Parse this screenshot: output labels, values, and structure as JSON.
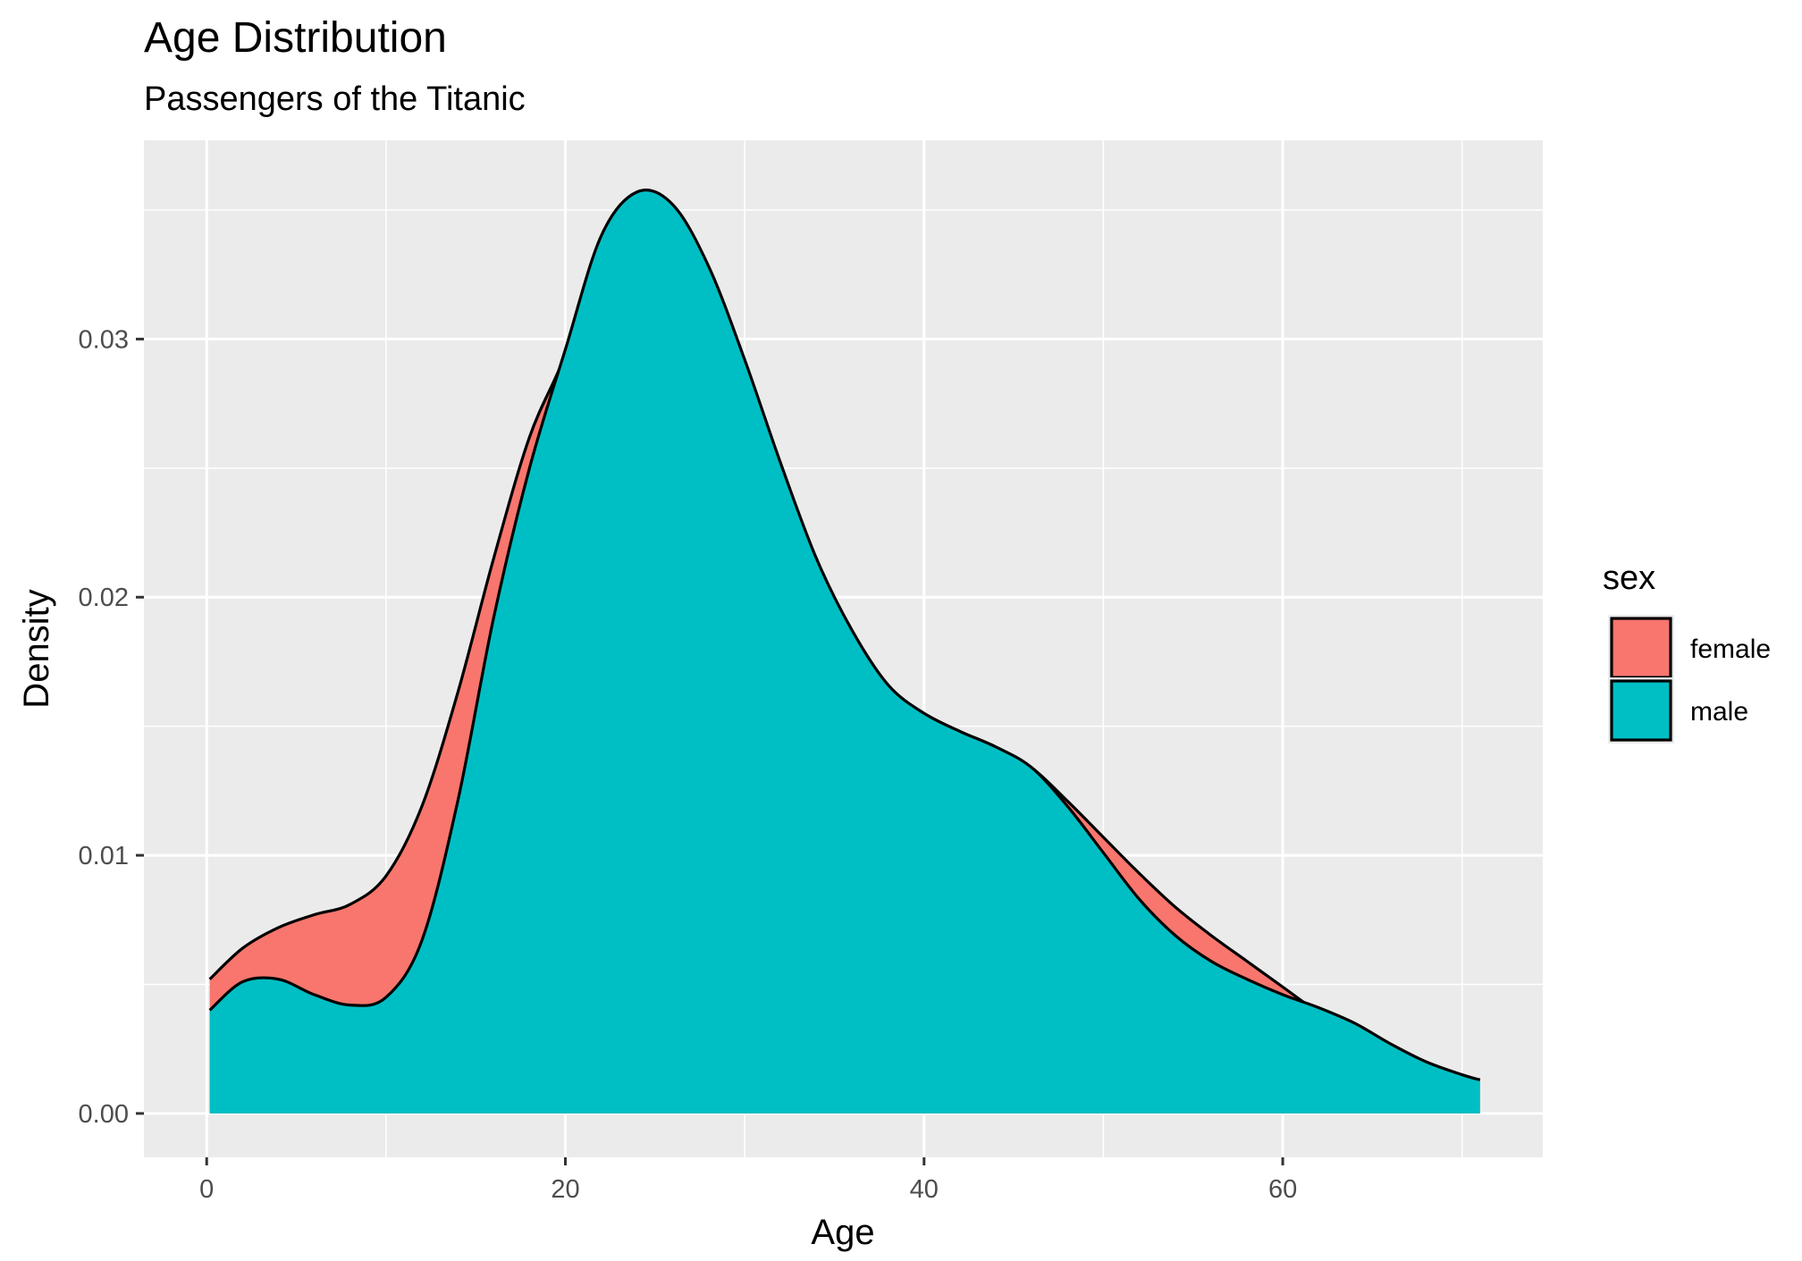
{
  "chart_data": {
    "type": "area",
    "title": "Age Distribution",
    "subtitle": "Passengers of the Titanic",
    "xlabel": "Age",
    "ylabel": "Density",
    "xlim": [
      -3.5,
      74.5
    ],
    "ylim": [
      -0.0017,
      0.0377
    ],
    "x_ticks": [
      0,
      20,
      40,
      60
    ],
    "y_ticks": [
      0.0,
      0.01,
      0.02,
      0.03
    ],
    "y_tick_labels": [
      "0.00",
      "0.01",
      "0.02",
      "0.03"
    ],
    "grid": true,
    "legend": {
      "title": "sex",
      "position": "right"
    },
    "series": [
      {
        "name": "female",
        "color": "#F8766D",
        "x": [
          0.17,
          2,
          4,
          6,
          8,
          10,
          12,
          14,
          16,
          18,
          20,
          22,
          24,
          26,
          28,
          30,
          32,
          34,
          36,
          38,
          40,
          42,
          44,
          46,
          48,
          50,
          52,
          54,
          56,
          58,
          60,
          62,
          64,
          66,
          68,
          70,
          71
        ],
        "values": [
          0.0052,
          0.0064,
          0.0072,
          0.0077,
          0.0081,
          0.0092,
          0.0119,
          0.0163,
          0.0215,
          0.0262,
          0.0294,
          0.0335,
          0.0355,
          0.035,
          0.0326,
          0.029,
          0.0251,
          0.0214,
          0.0186,
          0.0165,
          0.0155,
          0.0148,
          0.0142,
          0.0134,
          0.0121,
          0.0107,
          0.0093,
          0.008,
          0.0069,
          0.0059,
          0.0049,
          0.0039,
          0.003,
          0.0023,
          0.0018,
          0.0014,
          0.0013
        ]
      },
      {
        "name": "male",
        "color": "#00BFC4",
        "x": [
          0.17,
          2,
          4,
          6,
          8,
          10,
          12,
          14,
          16,
          18,
          20,
          22,
          24,
          26,
          28,
          30,
          32,
          34,
          36,
          38,
          40,
          42,
          44,
          46,
          48,
          50,
          52,
          54,
          56,
          58,
          60,
          62,
          64,
          66,
          68,
          70,
          71
        ],
        "values": [
          0.004,
          0.0051,
          0.0052,
          0.0046,
          0.0042,
          0.0045,
          0.0067,
          0.0121,
          0.0192,
          0.025,
          0.0296,
          0.034,
          0.0357,
          0.0352,
          0.0328,
          0.0292,
          0.0252,
          0.0215,
          0.0187,
          0.0166,
          0.0155,
          0.0148,
          0.0142,
          0.0134,
          0.0119,
          0.0101,
          0.0083,
          0.0069,
          0.0059,
          0.0052,
          0.0046,
          0.0041,
          0.0035,
          0.0027,
          0.002,
          0.0015,
          0.0013
        ]
      }
    ]
  }
}
